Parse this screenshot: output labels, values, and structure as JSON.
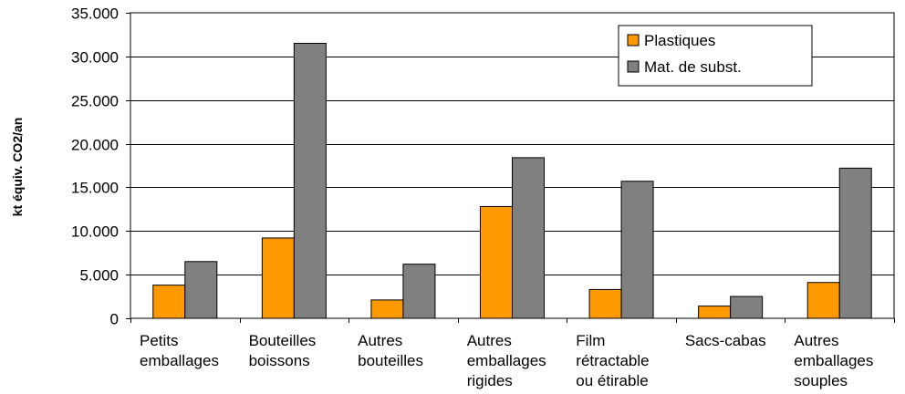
{
  "chart_data": {
    "type": "bar",
    "ylabel": "kt équiv. CO2/an",
    "ylim": [
      0,
      35000
    ],
    "yticks": [
      0,
      5000,
      10000,
      15000,
      20000,
      25000,
      30000,
      35000
    ],
    "ytick_labels": [
      "0",
      "5.000",
      "10.000",
      "15.000",
      "20.000",
      "25.000",
      "30.000",
      "35.000"
    ],
    "categories": [
      [
        "Petits",
        "emballages"
      ],
      [
        "Bouteilles",
        "boissons"
      ],
      [
        "Autres",
        "bouteilles"
      ],
      [
        "Autres",
        "emballages",
        "rigides"
      ],
      [
        "Film",
        "rétractable",
        "ou étirable"
      ],
      [
        "Sacs-cabas"
      ],
      [
        "Autres",
        "emballages",
        "souples"
      ]
    ],
    "series": [
      {
        "name": "Plastiques",
        "color": "#FF9900",
        "values": [
          3800,
          9200,
          2100,
          12800,
          3300,
          1400,
          4100
        ]
      },
      {
        "name": "Mat. de subst.",
        "color": "#808080",
        "values": [
          6500,
          31500,
          6200,
          18400,
          15700,
          2500,
          17200
        ]
      }
    ],
    "grid": true,
    "legend_position": "top-right"
  }
}
